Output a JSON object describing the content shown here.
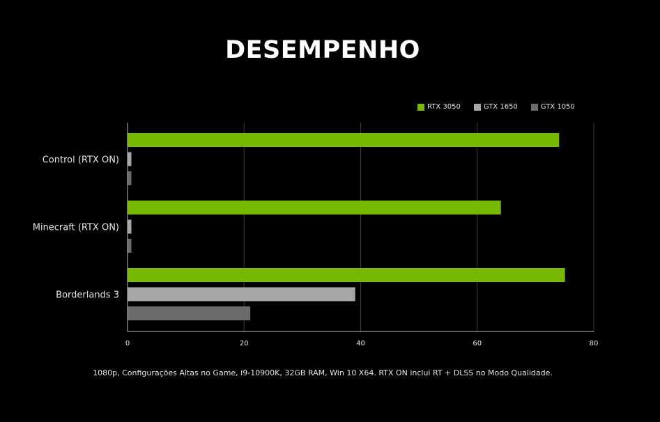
{
  "title": "DESEMPENHO",
  "footnote": "1080p, Configurações Altas no Game, i9-10900K, 32GB RAM, Win 10 X64. RTX ON inclui RT + DLSS no Modo Qualidade.",
  "colors": {
    "background": "#000000",
    "grid": "#3a3a3a",
    "axis": "#bdbdbd",
    "text": "#e6e6e6"
  },
  "chart_data": {
    "type": "bar",
    "orientation": "horizontal",
    "categories": [
      "Control (RTX ON)",
      "Minecraft (RTX ON)",
      "Borderlands 3"
    ],
    "series": [
      {
        "name": "RTX 3050",
        "color": "#76b900",
        "values": [
          74,
          64,
          75
        ]
      },
      {
        "name": "GTX 1650",
        "color": "#a6a6a6",
        "values": [
          0.6,
          0.6,
          39
        ]
      },
      {
        "name": "GTX 1050",
        "color": "#6b6b6b",
        "values": [
          0.6,
          0.6,
          21
        ]
      }
    ],
    "xlim": [
      0,
      80
    ],
    "xticks": [
      "0",
      "20",
      "40",
      "60",
      "80"
    ],
    "xtick_values": [
      0,
      20,
      40,
      60,
      80
    ],
    "grid": true,
    "legend_position": "top-right"
  }
}
